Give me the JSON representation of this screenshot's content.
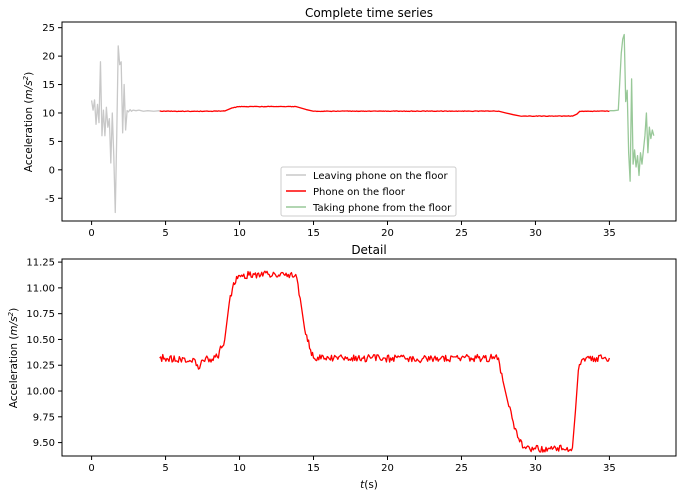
{
  "chart_data": [
    {
      "type": "line",
      "title": "Complete time series",
      "xlabel": "",
      "ylabel": "Acceleration (m/s²)",
      "ylabel_parts": {
        "main": "Acceleration (",
        "unit_m": "m",
        "unit_s": "/s",
        "unit_exp": "2",
        "close": ")"
      },
      "xlim": [
        -2,
        39.5
      ],
      "ylim": [
        -9,
        26
      ],
      "xticks": [
        0,
        5,
        10,
        15,
        20,
        25,
        30,
        35
      ],
      "yticks": [
        -5,
        0,
        5,
        10,
        15,
        20,
        25
      ],
      "grid": false,
      "legend_position": "bottom-center",
      "series": [
        {
          "name": "Leaving phone on the floor",
          "color": "#c8c8c8",
          "x": [
            0.0,
            0.1,
            0.2,
            0.3,
            0.4,
            0.5,
            0.6,
            0.7,
            0.8,
            0.9,
            1.0,
            1.1,
            1.2,
            1.3,
            1.4,
            1.5,
            1.6,
            1.7,
            1.8,
            1.9,
            2.0,
            2.1,
            2.2,
            2.3,
            2.4,
            2.5,
            2.6,
            2.7,
            2.8,
            3.0,
            3.2,
            3.5,
            3.8,
            4.2,
            4.6
          ],
          "y": [
            12.2,
            10.5,
            12.3,
            8.0,
            11.5,
            8.3,
            19.0,
            6.0,
            10.5,
            6.0,
            11.0,
            7.5,
            9.0,
            1.2,
            10.0,
            2.5,
            -7.5,
            6.0,
            21.8,
            18.5,
            19.0,
            6.5,
            15.0,
            7.0,
            10.4,
            10.2,
            10.6,
            10.3,
            10.5,
            10.4,
            10.5,
            10.3,
            10.4,
            10.3,
            10.4
          ]
        },
        {
          "name": "Phone on the floor",
          "color": "#ff0000",
          "x": [
            4.6,
            7.0,
            8.0,
            9.0,
            9.5,
            10.0,
            12.0,
            13.8,
            14.5,
            15.0,
            20.0,
            27.5,
            28.0,
            28.5,
            29.0,
            30.0,
            32.5,
            32.8,
            33.0,
            35.0
          ],
          "y": [
            10.32,
            10.3,
            10.3,
            10.35,
            10.9,
            11.13,
            11.13,
            11.13,
            10.6,
            10.3,
            10.32,
            10.32,
            10.0,
            9.7,
            9.45,
            9.45,
            9.45,
            9.8,
            10.3,
            10.32
          ]
        },
        {
          "name": "Taking phone from the floor",
          "color": "#98c898",
          "x": [
            35.0,
            35.3,
            35.6,
            35.8,
            35.9,
            36.0,
            36.1,
            36.2,
            36.3,
            36.4,
            36.5,
            36.6,
            36.7,
            36.8,
            36.9,
            37.0,
            37.1,
            37.2,
            37.3,
            37.4,
            37.5,
            37.6,
            37.7,
            37.8,
            37.9,
            38.0
          ],
          "y": [
            10.4,
            10.4,
            10.5,
            20.5,
            23.0,
            23.8,
            12.0,
            14.0,
            3.0,
            -2.0,
            16.0,
            1.0,
            3.5,
            0.5,
            2.5,
            -1.0,
            3.0,
            1.0,
            3.5,
            6.0,
            10.0,
            3.0,
            7.5,
            5.5,
            7.0,
            6.0
          ]
        }
      ]
    },
    {
      "type": "line",
      "title": "Detail",
      "xlabel": "t(s)",
      "xlabel_parts": {
        "t": "t",
        "rest": "(s)"
      },
      "ylabel": "Acceleration (m/s²)",
      "ylabel_parts": {
        "main": "Acceleration (",
        "unit_m": "m",
        "unit_s": "/s",
        "unit_exp": "2",
        "close": ")"
      },
      "xlim": [
        -2,
        39.5
      ],
      "ylim": [
        9.37,
        11.28
      ],
      "xticks": [
        0,
        5,
        10,
        15,
        20,
        25,
        30,
        35
      ],
      "yticks": [
        9.5,
        9.75,
        10.0,
        10.25,
        10.5,
        10.75,
        11.0,
        11.25
      ],
      "ytick_labels": [
        "9.50",
        "9.75",
        "10.00",
        "10.25",
        "10.50",
        "10.75",
        "11.00",
        "11.25"
      ],
      "grid": false,
      "legend_position": "none",
      "series": [
        {
          "name": "Phone on the floor",
          "color": "#ff0000",
          "x": [
            4.6,
            6.0,
            7.0,
            7.3,
            7.5,
            8.0,
            8.5,
            9.0,
            9.3,
            9.6,
            10.0,
            11.0,
            12.0,
            13.0,
            13.8,
            14.1,
            14.4,
            14.8,
            15.0,
            18.0,
            22.0,
            26.0,
            27.5,
            27.8,
            28.2,
            28.5,
            28.8,
            29.2,
            30.0,
            31.0,
            32.5,
            32.7,
            32.9,
            33.2,
            35.0
          ],
          "y": [
            10.32,
            10.31,
            10.3,
            10.22,
            10.3,
            10.31,
            10.33,
            10.5,
            10.85,
            11.05,
            11.12,
            11.13,
            11.13,
            11.13,
            11.13,
            10.9,
            10.6,
            10.4,
            10.32,
            10.32,
            10.31,
            10.32,
            10.32,
            10.1,
            9.85,
            9.7,
            9.55,
            9.45,
            9.44,
            9.44,
            9.45,
            9.8,
            10.2,
            10.31,
            10.32
          ]
        }
      ]
    }
  ]
}
